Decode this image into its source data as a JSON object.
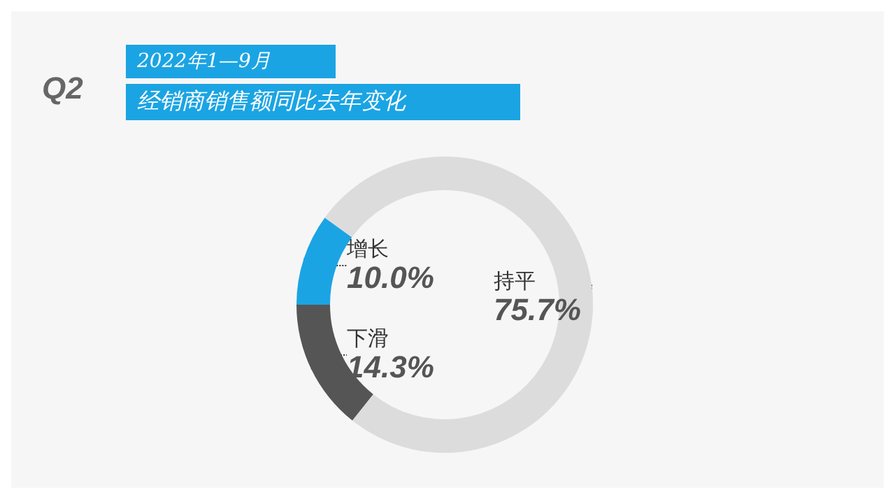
{
  "chart_data": {
    "type": "donut",
    "title": "经销商销售额同比去年变化",
    "subtitle": "2022年1—9月",
    "annotations": [
      "Q2"
    ],
    "categories": [
      "增长",
      "下滑",
      "持平"
    ],
    "values": [
      10.0,
      14.3,
      75.7
    ],
    "colors": [
      "#1ba4e3",
      "#555555",
      "#dcdcdc"
    ],
    "value_labels": [
      "10.0%",
      "14.3%",
      "75.7%"
    ],
    "legend": false
  }
}
